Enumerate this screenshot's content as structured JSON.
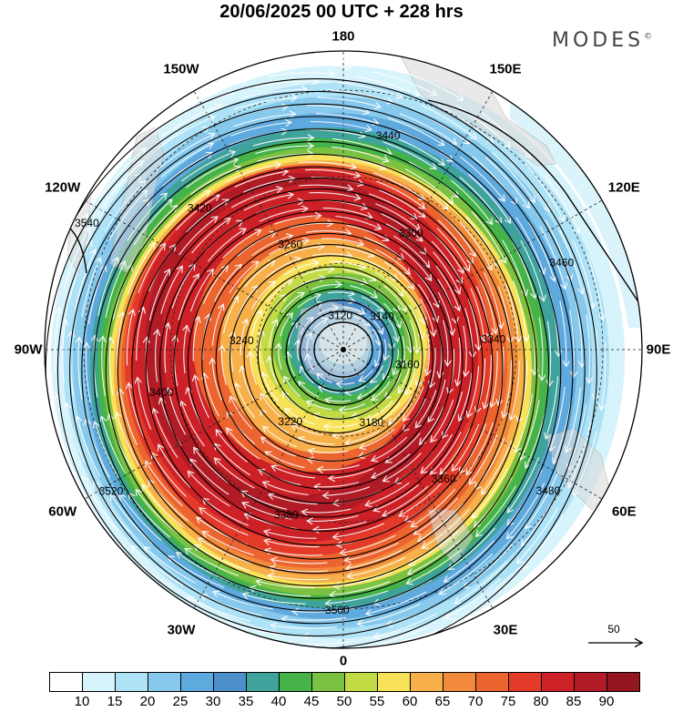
{
  "title": "20/06/2025  00 UTC  + 228 hrs",
  "brand": "MODES",
  "brand_mark": "©",
  "longitude_labels": [
    {
      "text": "0",
      "lon": 0
    },
    {
      "text": "30E",
      "lon": 30
    },
    {
      "text": "60E",
      "lon": 60
    },
    {
      "text": "90E",
      "lon": 90
    },
    {
      "text": "120E",
      "lon": 120
    },
    {
      "text": "150E",
      "lon": 150
    },
    {
      "text": "180",
      "lon": 180
    },
    {
      "text": "150W",
      "lon": -150
    },
    {
      "text": "120W",
      "lon": -120
    },
    {
      "text": "90W",
      "lon": -90
    },
    {
      "text": "60W",
      "lon": -60
    },
    {
      "text": "30W",
      "lon": -30
    }
  ],
  "contour_labels": [
    "3120",
    "3140",
    "3160",
    "3180",
    "3220",
    "3240",
    "3260",
    "3300",
    "3340",
    "3360",
    "3380",
    "3400",
    "3420",
    "3440",
    "3460",
    "3480",
    "3500",
    "3520",
    "3540"
  ],
  "reference_vector": {
    "label": "50"
  },
  "colorbar": {
    "colors": [
      "#ffffff",
      "#d7f3fb",
      "#aee2f6",
      "#86c9ec",
      "#5ea9dd",
      "#4c8fca",
      "#3fa39b",
      "#45b24a",
      "#7cc242",
      "#c2db45",
      "#f8e25a",
      "#f7b04a",
      "#f28a3b",
      "#ec6430",
      "#e33a2a",
      "#cc2127",
      "#b11b25",
      "#921520"
    ],
    "ticks": [
      "10",
      "15",
      "20",
      "25",
      "30",
      "35",
      "40",
      "45",
      "50",
      "55",
      "60",
      "65",
      "70",
      "75",
      "80",
      "85",
      "90"
    ]
  },
  "map_data": {
    "projection": "polar-stereographic",
    "pole": "south",
    "field_shaded": "wind speed",
    "field_contoured": "geopotential height"
  }
}
